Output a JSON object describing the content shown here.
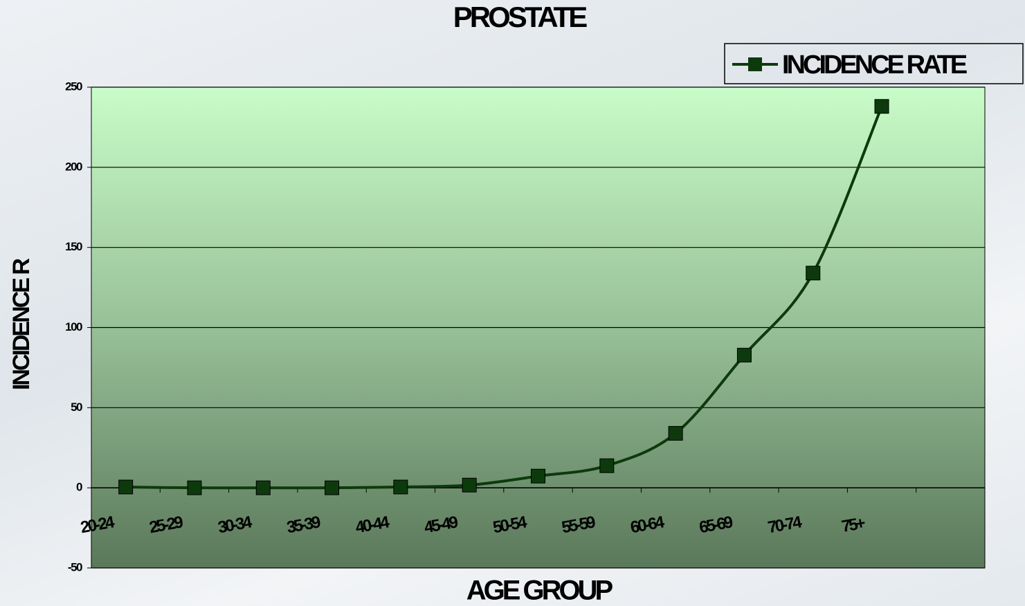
{
  "chart_data": {
    "type": "line",
    "title": "PROSTATE",
    "x_label": "AGE GROUP",
    "y_label": "INCIDENCE R",
    "categories": [
      "20-24",
      "25-29",
      "30-34",
      "35-39",
      "40-44",
      "45-49",
      "50-54",
      "55-59",
      "60-64",
      "65-69",
      "70-74",
      "75+",
      null
    ],
    "series": [
      {
        "name": "INCIDENCE RATE",
        "color": "#0d3a0d",
        "values": [
          0.5,
          0,
          0,
          0,
          0.5,
          1.7,
          7.3,
          13.8,
          34,
          82.8,
          134,
          238,
          null
        ]
      }
    ],
    "ylim": [
      -50,
      250
    ],
    "yticks": [
      -50,
      0,
      50,
      100,
      150,
      200,
      250
    ],
    "grid": true,
    "legend": "top-right"
  }
}
